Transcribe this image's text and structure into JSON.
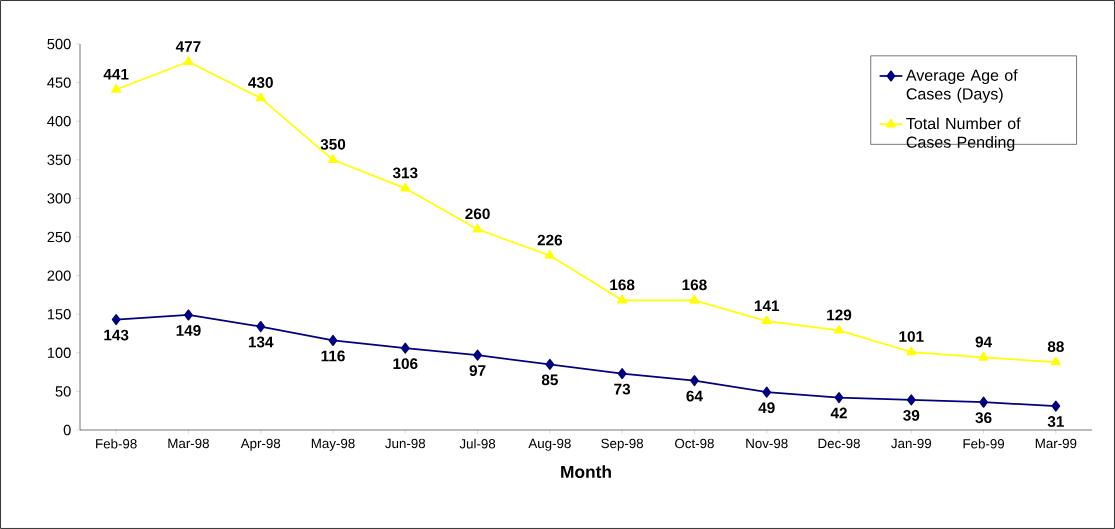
{
  "chart_data": {
    "type": "line",
    "xlabel": "Month",
    "categories": [
      "Feb-98",
      "Mar-98",
      "Apr-98",
      "May-98",
      "Jun-98",
      "Jul-98",
      "Aug-98",
      "Sep-98",
      "Oct-98",
      "Nov-98",
      "Dec-98",
      "Jan-99",
      "Feb-99",
      "Mar-99"
    ],
    "series": [
      {
        "name": "Average Age of Cases (Days)",
        "color": "#000080",
        "marker": "diamond",
        "values": [
          143,
          149,
          134,
          116,
          106,
          97,
          85,
          73,
          64,
          49,
          42,
          39,
          36,
          31
        ]
      },
      {
        "name": "Total Number of Cases Pending",
        "color": "#ffff00",
        "marker": "triangle",
        "values": [
          441,
          477,
          430,
          350,
          313,
          260,
          226,
          168,
          168,
          141,
          129,
          101,
          94,
          88
        ]
      }
    ],
    "ylim": [
      0,
      500
    ],
    "yticks": [
      0,
      50,
      100,
      150,
      200,
      250,
      300,
      350,
      400,
      450,
      500
    ],
    "data_labels": true,
    "grid": false,
    "legend": "top right",
    "line_style": "solid"
  }
}
